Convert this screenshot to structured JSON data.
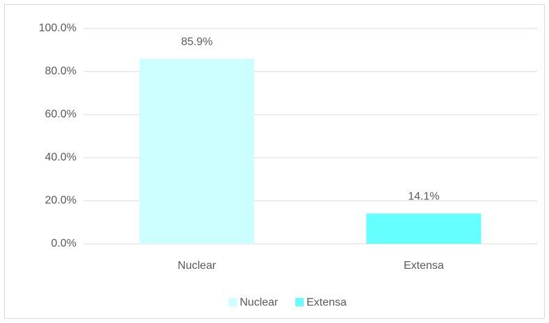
{
  "chart_data": {
    "type": "bar",
    "categories": [
      "Nuclear",
      "Extensa"
    ],
    "values": [
      85.9,
      14.1
    ],
    "value_labels": [
      "85.9%",
      "14.1%"
    ],
    "colors": [
      "#ccffff",
      "#66ffff"
    ],
    "ylim": [
      0,
      100
    ],
    "yticks": [
      {
        "value": 0,
        "label": "0.0%"
      },
      {
        "value": 20,
        "label": "20.0%"
      },
      {
        "value": 40,
        "label": "40.0%"
      },
      {
        "value": 60,
        "label": "60.0%"
      },
      {
        "value": 80,
        "label": "80.0%"
      },
      {
        "value": 100,
        "label": "100.0%"
      }
    ],
    "grid": true,
    "legend": "bottom"
  }
}
